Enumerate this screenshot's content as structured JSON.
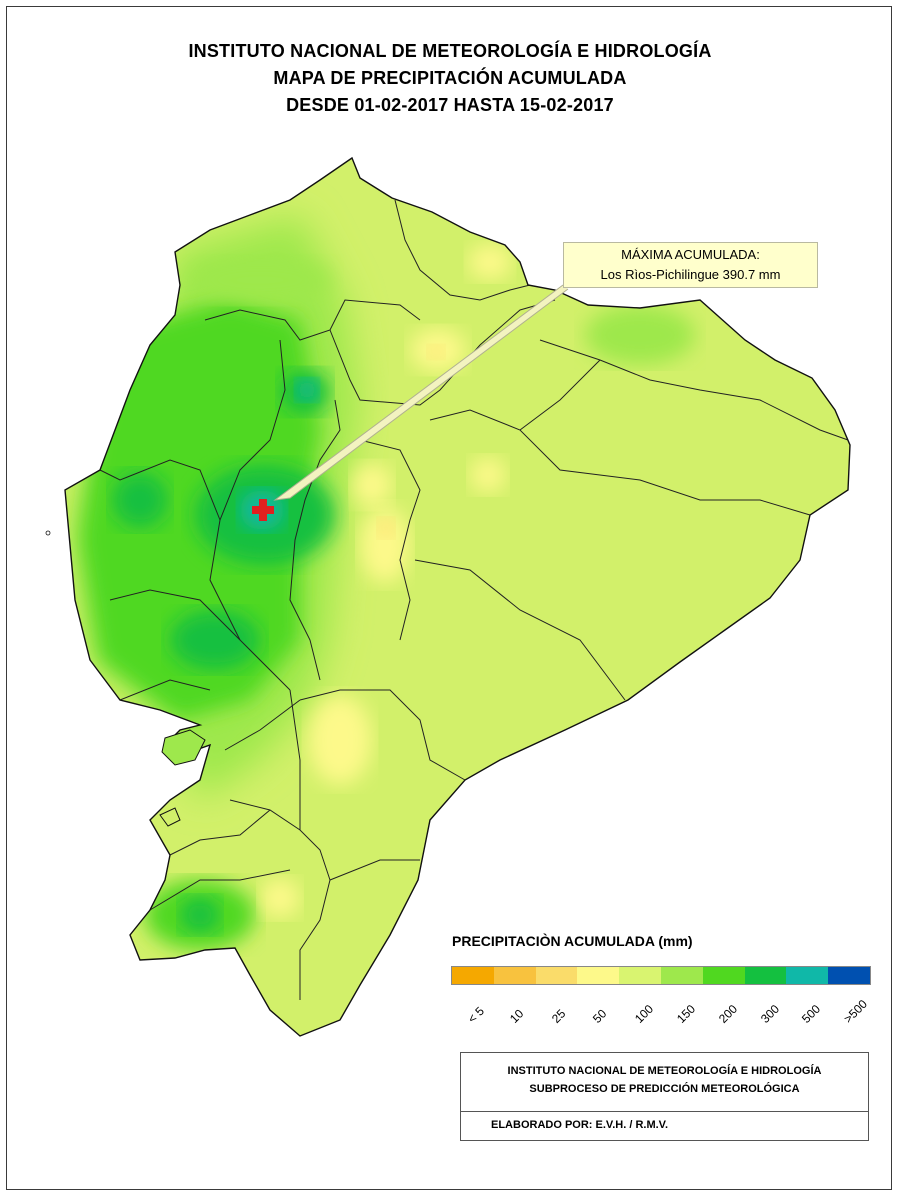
{
  "title": {
    "line1": "INSTITUTO NACIONAL DE METEOROLOGÍA E HIDROLOGÍA",
    "line2": "MAPA DE PRECIPITACIÓN ACUMULADA",
    "line3": "DESDE 01-02-2017 HASTA 15-02-2017"
  },
  "callout": {
    "label": "MÁXIMA ACUMULADA:",
    "station": "Los Rìos-Pichilingue 390.7 mm"
  },
  "legend": {
    "title": "PRECIPITACIÒN ACUMULADA (mm)",
    "classes": [
      {
        "label": "< 5",
        "color": "#f5a800"
      },
      {
        "label": "10",
        "color": "#f8c23e"
      },
      {
        "label": "25",
        "color": "#fadc6a"
      },
      {
        "label": "50",
        "color": "#fdf98a"
      },
      {
        "label": "100",
        "color": "#d9f470"
      },
      {
        "label": "150",
        "color": "#9ee84c"
      },
      {
        "label": "200",
        "color": "#50d820"
      },
      {
        "label": "300",
        "color": "#14c040"
      },
      {
        "label": "500",
        "color": "#10b8a8"
      },
      {
        "label": ">500",
        "color": "#0050b0"
      }
    ]
  },
  "credits": {
    "line1": "INSTITUTO NACIONAL DE METEOROLOGÍA E HIDROLOGÍA",
    "line2": "SUBPROCESO DE PREDICCIÓN METEOROLÓGICA",
    "line3": "ELABORADO POR: E.V.H. / R.M.V."
  },
  "map": {
    "base_color": "#d2f06a",
    "max_marker_icon": "red-cross-icon",
    "max_marker_color": "#e02020"
  }
}
